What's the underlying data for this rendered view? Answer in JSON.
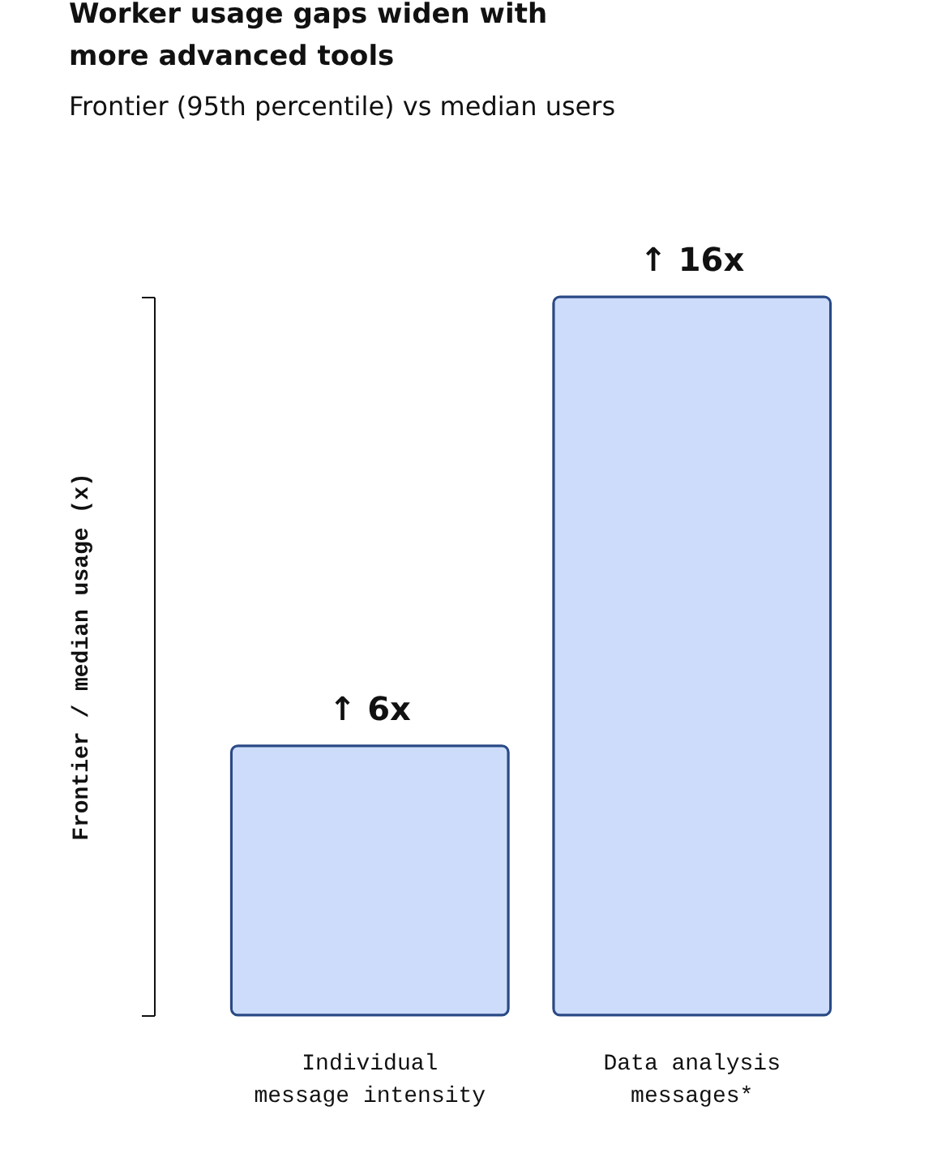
{
  "chart_data": {
    "type": "bar",
    "title": "Worker usage gaps widen with\nmore advanced tools",
    "subtitle": "Frontier (95th percentile) vs median users",
    "ylabel": "Frontier / median usage (x)",
    "categories": [
      "Individual\nmessage intensity",
      "Data analysis\nmessages*"
    ],
    "values": [
      6,
      16
    ],
    "value_labels": [
      "↑ 6x",
      "↑ 16x"
    ],
    "color": "#cddcfa",
    "ylim": [
      0,
      16
    ],
    "tick_labels": "x",
    "grid": false
  }
}
